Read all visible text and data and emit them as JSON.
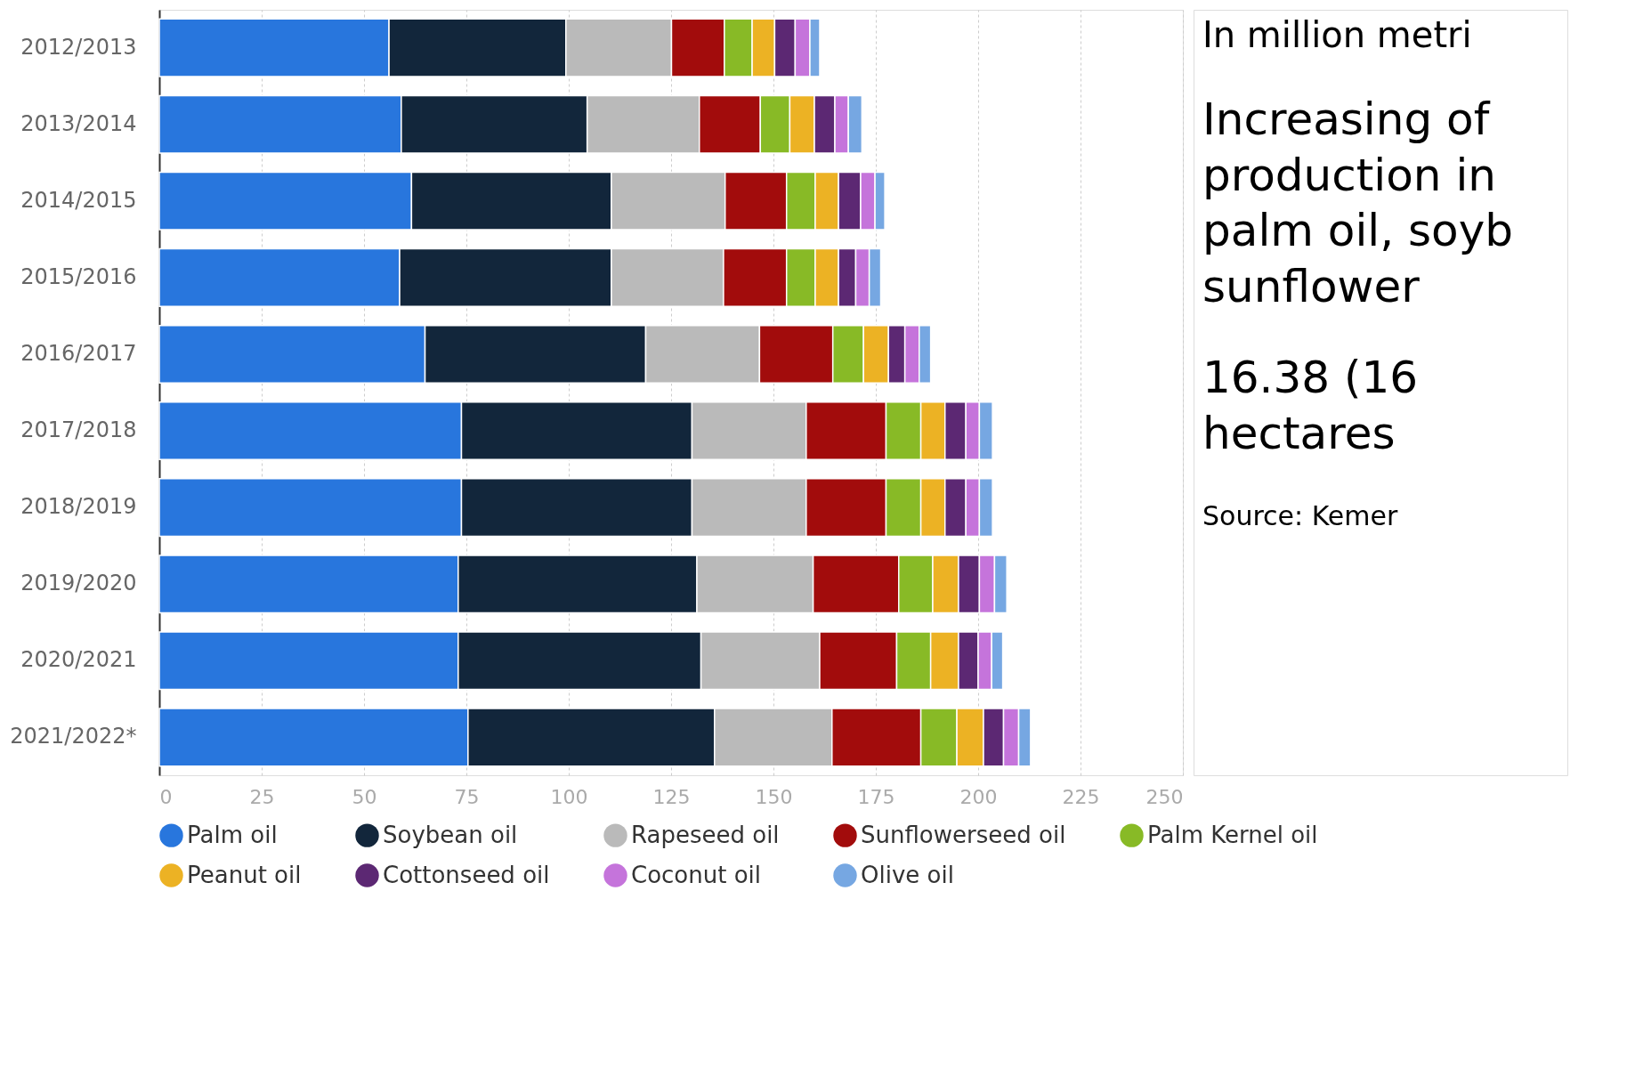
{
  "chart_data": {
    "type": "bar",
    "orientation": "horizontal",
    "stacked": true,
    "categories": [
      "2012/2013",
      "2013/2014",
      "2014/2015",
      "2015/2016",
      "2016/2017",
      "2017/2018",
      "2018/2019",
      "2019/2020",
      "2020/2021",
      "2021/2022*"
    ],
    "series": [
      {
        "name": "Palm oil",
        "color": "#2876dd",
        "values": [
          56.1,
          59.1,
          61.6,
          58.7,
          64.9,
          73.8,
          73.8,
          73.0,
          73.0,
          75.4
        ]
      },
      {
        "name": "Soybean oil",
        "color": "#12263b",
        "values": [
          43.2,
          45.4,
          48.8,
          51.7,
          53.9,
          56.3,
          56.3,
          58.3,
          59.3,
          60.2
        ]
      },
      {
        "name": "Rapeseed oil",
        "color": "#bababa",
        "values": [
          25.8,
          27.4,
          27.8,
          27.4,
          27.8,
          27.9,
          27.9,
          28.4,
          29.0,
          28.7
        ]
      },
      {
        "name": "Sunflowerseed oil",
        "color": "#a20c0c",
        "values": [
          12.9,
          14.9,
          15.0,
          15.4,
          17.9,
          19.5,
          19.5,
          20.9,
          18.8,
          21.7
        ]
      },
      {
        "name": "Palm Kernel oil",
        "color": "#88ba26",
        "values": [
          6.8,
          7.2,
          7.0,
          7.0,
          7.5,
          8.5,
          8.5,
          8.3,
          8.3,
          8.8
        ]
      },
      {
        "name": "Peanut oil",
        "color": "#ecb224",
        "values": [
          5.5,
          6.0,
          5.7,
          5.7,
          6.1,
          5.9,
          5.9,
          6.3,
          6.8,
          6.5
        ]
      },
      {
        "name": "Cottonseed oil",
        "color": "#5c2873",
        "values": [
          5.0,
          5.0,
          5.4,
          4.2,
          4.0,
          5.1,
          5.1,
          5.1,
          4.8,
          4.9
        ]
      },
      {
        "name": "Coconut oil",
        "color": "#c574db",
        "values": [
          3.6,
          3.3,
          3.5,
          3.3,
          3.5,
          3.3,
          3.3,
          3.7,
          3.3,
          3.7
        ]
      },
      {
        "name": "Olive oil",
        "color": "#76a7e2",
        "values": [
          2.4,
          3.3,
          2.4,
          2.8,
          2.8,
          3.2,
          3.2,
          3.0,
          2.7,
          2.9
        ]
      }
    ],
    "xlim": [
      0,
      250
    ],
    "xticks": [
      0,
      25,
      50,
      75,
      100,
      125,
      150,
      175,
      200,
      225,
      250
    ],
    "grid": "x",
    "legend": "bottom",
    "annotations": [
      "In million metri",
      "Increasing of\nproduction in\npalm oil, soyb\nsunflower",
      "16.38 (16\nhectares",
      "Source: Kemer"
    ]
  }
}
